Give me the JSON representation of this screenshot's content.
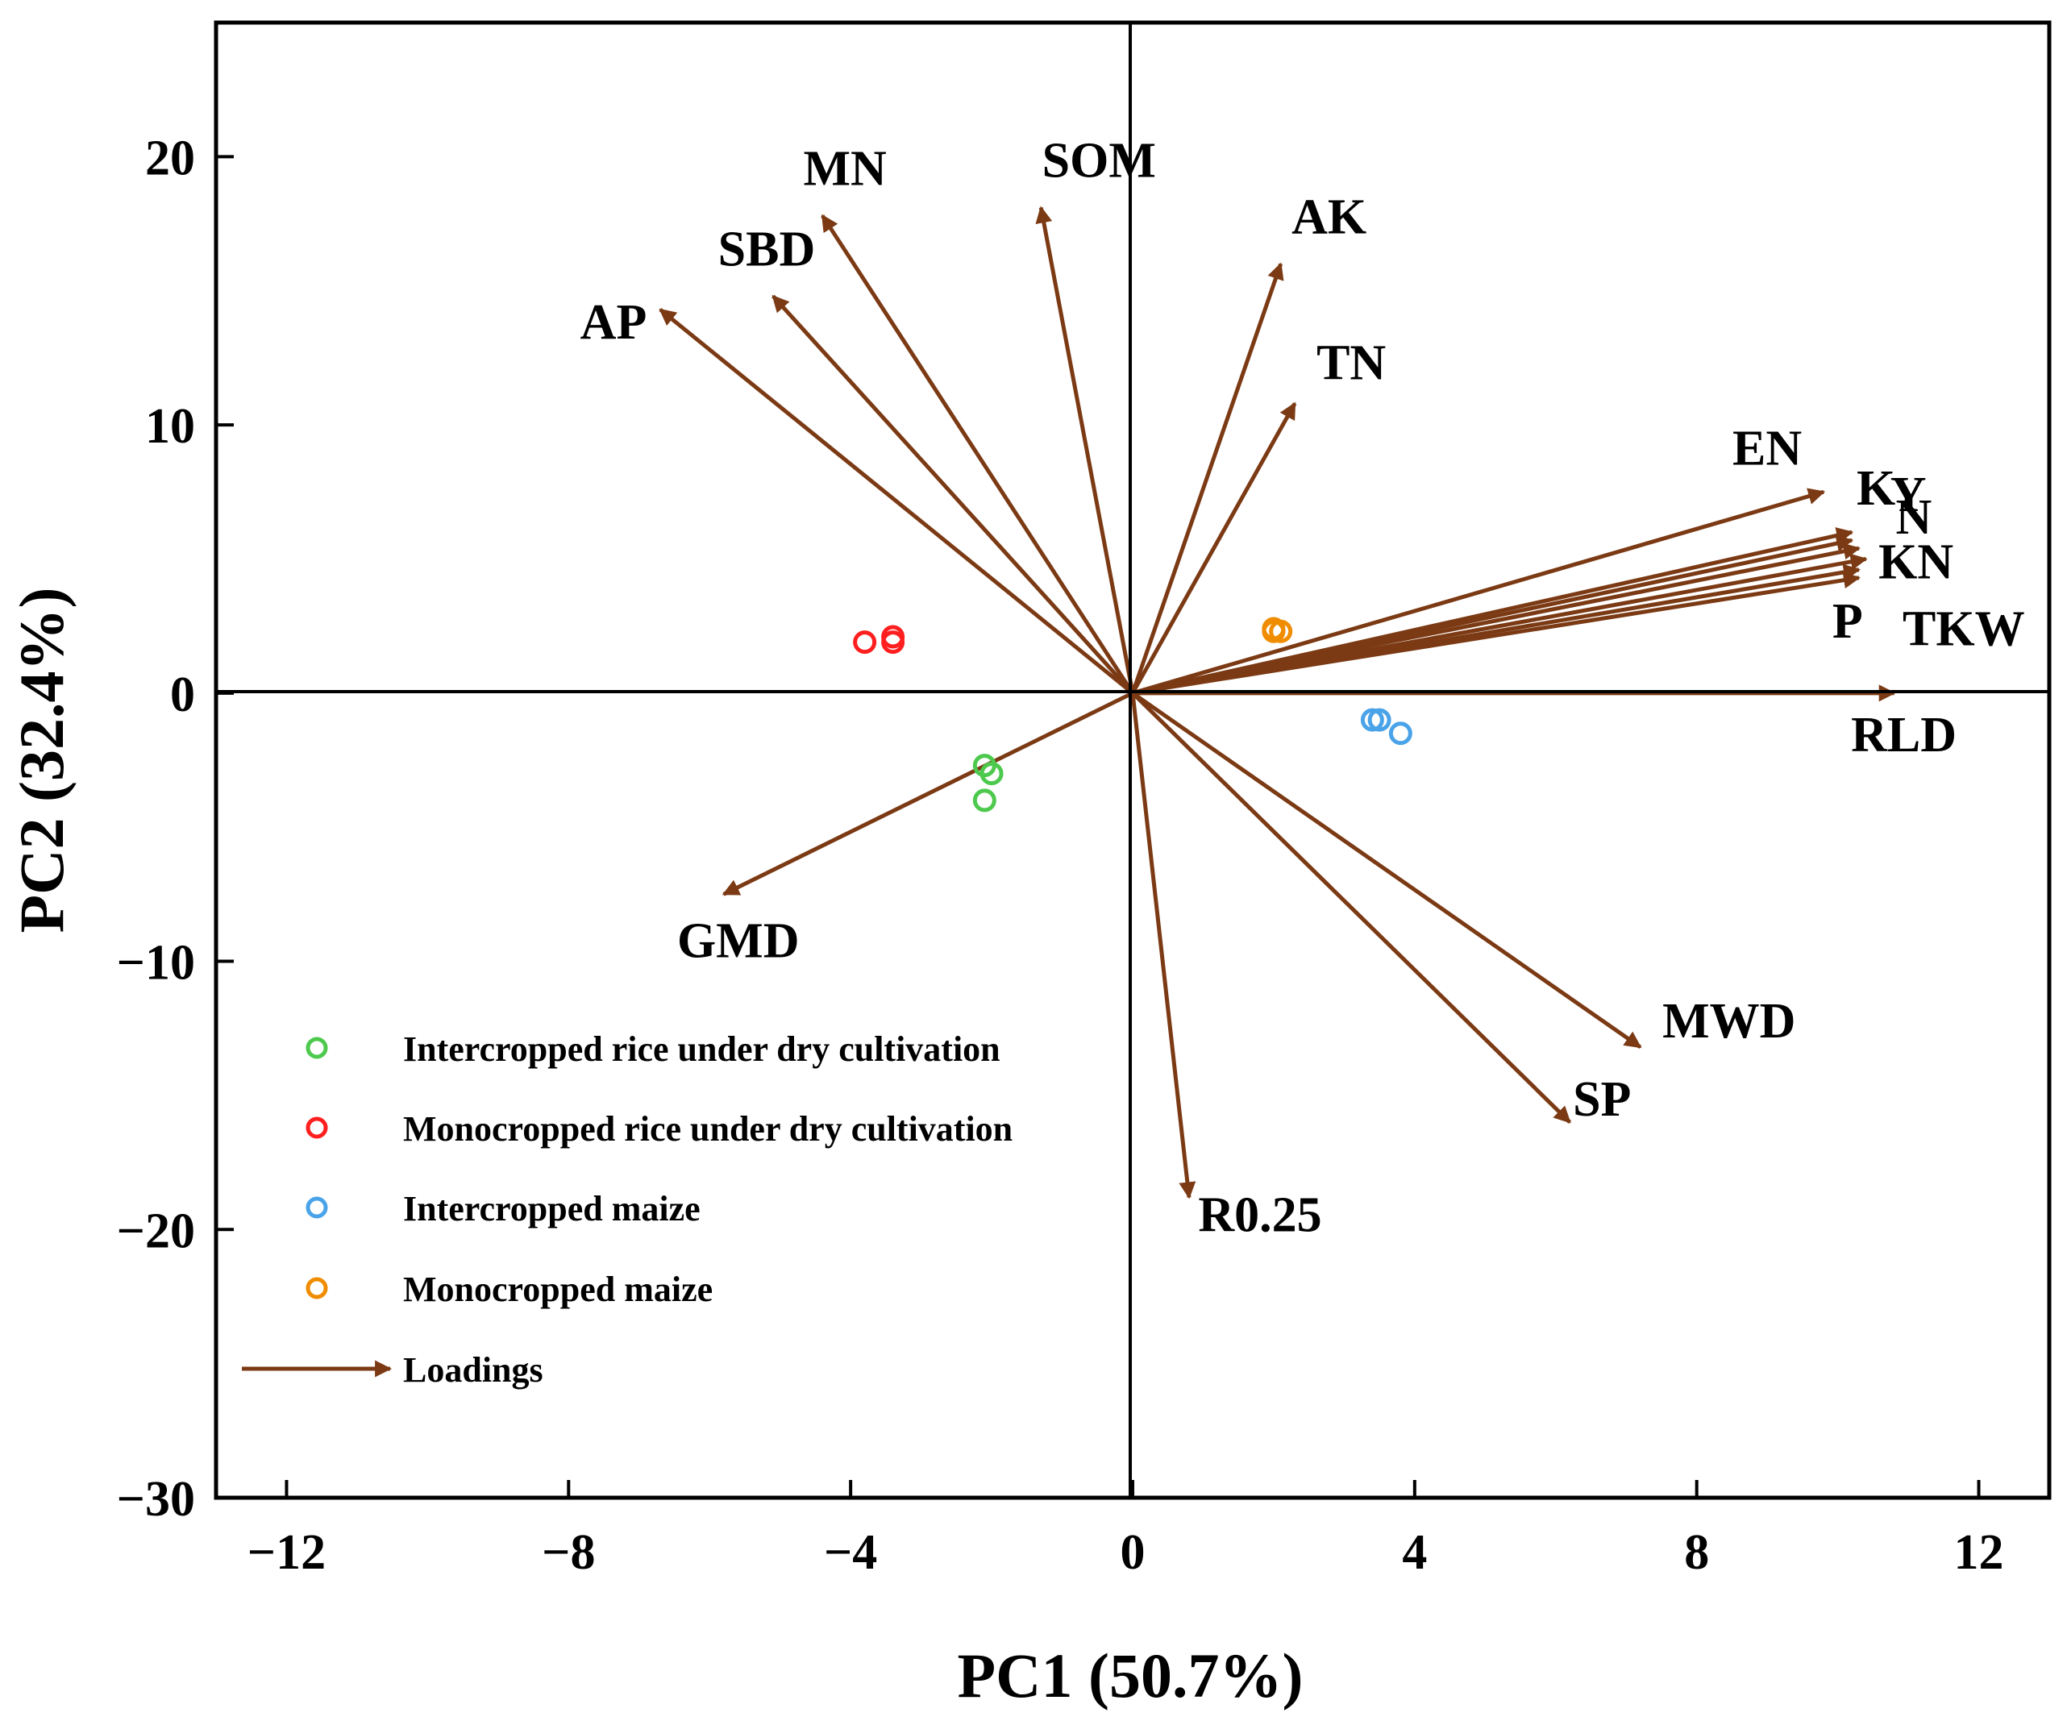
{
  "chart_data": {
    "type": "scatter",
    "title": "",
    "xlabel": "PC1 (50.7%)",
    "ylabel": "PC2 (32.4%)",
    "xlim": [
      -13,
      13
    ],
    "ylim": [
      -30,
      25
    ],
    "xticks": [
      -12,
      -8,
      -4,
      0,
      4,
      8,
      12
    ],
    "yticks": [
      -30,
      -20,
      -10,
      0,
      10,
      20
    ],
    "xtick_labels": [
      "-12",
      "-8",
      "-4",
      "0",
      "4",
      "8",
      "12"
    ],
    "ytick_labels": [
      "-30",
      "-20",
      "-10",
      "0",
      "10",
      "20"
    ],
    "legend_position": "bottom-left",
    "series": [
      {
        "name": "Intercropped rice under dry cultivation",
        "color": "#4dc94d",
        "points": [
          [
            -2.0,
            -3.0
          ],
          [
            -2.1,
            -2.7
          ],
          [
            -2.1,
            -4.0
          ]
        ]
      },
      {
        "name": "Monocropped rice under dry cultivation",
        "color": "#ff1f1f",
        "points": [
          [
            -3.8,
            1.9
          ],
          [
            -3.4,
            1.9
          ],
          [
            -3.4,
            2.1
          ]
        ]
      },
      {
        "name": "Intercropped maize",
        "color": "#4aa3e8",
        "points": [
          [
            3.4,
            -1.0
          ],
          [
            3.5,
            -1.0
          ],
          [
            3.8,
            -1.5
          ]
        ]
      },
      {
        "name": "Monocropped maize",
        "color": "#f08c00",
        "points": [
          [
            2.0,
            2.3
          ],
          [
            2.1,
            2.3
          ],
          [
            2.0,
            2.4
          ]
        ]
      }
    ],
    "loadings": {
      "name": "Loadings",
      "color": "#7b3a14",
      "vectors": [
        {
          "label": "AP",
          "x": -6.7,
          "y": 14.3
        },
        {
          "label": "SBD",
          "x": -5.1,
          "y": 14.8
        },
        {
          "label": "MN",
          "x": -4.4,
          "y": 17.8
        },
        {
          "label": "SOM",
          "x": -1.3,
          "y": 18.1
        },
        {
          "label": "AK",
          "x": 2.1,
          "y": 16.0
        },
        {
          "label": "TN",
          "x": 2.3,
          "y": 10.8
        },
        {
          "label": "EN",
          "x": 9.8,
          "y": 7.5
        },
        {
          "label": "K",
          "x": 10.2,
          "y": 6.0
        },
        {
          "label": "Y",
          "x": 10.2,
          "y": 5.7
        },
        {
          "label": "N",
          "x": 10.3,
          "y": 5.4
        },
        {
          "label": "KN",
          "x": 10.4,
          "y": 5.0
        },
        {
          "label": "P",
          "x": 10.3,
          "y": 4.6
        },
        {
          "label": "TKW",
          "x": 10.3,
          "y": 4.3
        },
        {
          "label": "RLD",
          "x": 10.8,
          "y": 0.0
        },
        {
          "label": "GMD",
          "x": -5.8,
          "y": -7.5
        },
        {
          "label": "R0.25",
          "x": 0.8,
          "y": -18.8
        },
        {
          "label": "MWD",
          "x": 7.2,
          "y": -13.2
        },
        {
          "label": "SP",
          "x": 6.2,
          "y": -16.0
        }
      ]
    }
  }
}
